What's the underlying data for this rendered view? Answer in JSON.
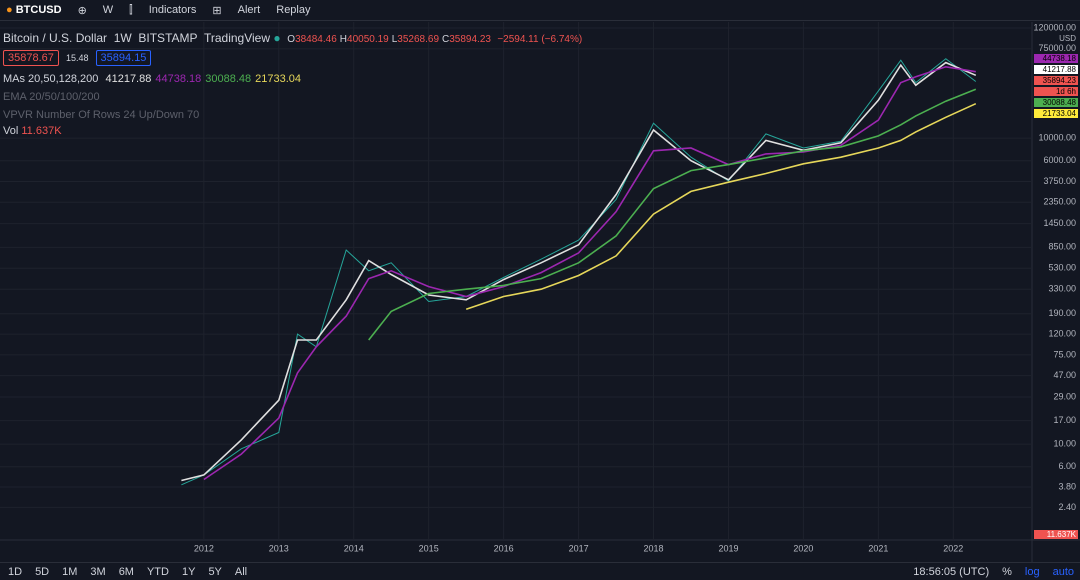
{
  "toolbar": {
    "symbol": "BTCUSD",
    "interval": "W",
    "indicators": "Indicators",
    "alert": "Alert",
    "replay": "Replay"
  },
  "legend": {
    "title": "Bitcoin / U.S. Dollar",
    "interval": "1W",
    "exchange": "BITSTAMP",
    "source": "TradingView",
    "ohlc": [
      {
        "k": "O",
        "v": "38484.46"
      },
      {
        "k": "H",
        "v": "40050.19"
      },
      {
        "k": "L",
        "v": "35268.69"
      },
      {
        "k": "C",
        "v": "35894.23"
      }
    ],
    "change": "−2594.11 (−6.74%)",
    "bid": "35878.67",
    "spread": "15.48",
    "ask": "35894.15",
    "mas_label": "MAs 20,50,128,200",
    "ma_values": [
      "41217.88",
      "44738.18",
      "30088.48",
      "21733.04"
    ],
    "ema": "EMA 20/50/100/200",
    "vpvr": "VPVR Number Of Rows 24 Up/Down 70",
    "vol_label": "Vol",
    "vol_value": "11.637K"
  },
  "axis_labels": {
    "currency": "USD",
    "boxes": [
      {
        "label": "44738.18",
        "color": "#9c27b0"
      },
      {
        "label": "41217.88",
        "color": "#ffffff"
      },
      {
        "label": "35894.23",
        "color": "#ef5350"
      },
      {
        "label": "1d 6h",
        "color": "#ef5350"
      },
      {
        "label": "30088.48",
        "color": "#4caf50"
      },
      {
        "label": "21733.04",
        "color": "#ffeb3b"
      }
    ],
    "volume": "11.637K"
  },
  "chart_data": {
    "type": "line",
    "log_scale": true,
    "grid": true,
    "x": [
      2011.7,
      2012,
      2012.5,
      2013,
      2013.25,
      2013.5,
      2013.9,
      2014.2,
      2014.5,
      2015,
      2015.5,
      2016,
      2016.5,
      2017,
      2017.5,
      2018,
      2018.5,
      2019,
      2019.5,
      2020,
      2020.5,
      2021,
      2021.3,
      2021.5,
      2021.9,
      2022.3
    ],
    "series": [
      {
        "name": "Price",
        "color": "#26a69a",
        "values": [
          4,
          5,
          9,
          13,
          120,
          90,
          800,
          500,
          600,
          250,
          280,
          430,
          650,
          1000,
          2500,
          14000,
          6500,
          3800,
          11000,
          8000,
          9300,
          29000,
          58000,
          35000,
          60000,
          35894
        ]
      },
      {
        "name": "MA 20",
        "color": "#e0e0e0",
        "values": [
          4.4,
          5,
          11,
          27,
          105,
          105,
          260,
          630,
          460,
          290,
          260,
          410,
          600,
          900,
          2800,
          12000,
          6000,
          3900,
          9500,
          7600,
          9000,
          23500,
          52000,
          33000,
          55000,
          41218
        ]
      },
      {
        "name": "MA 50",
        "color": "#9c27b0",
        "values": [
          null,
          4.5,
          8,
          18,
          50,
          90,
          180,
          420,
          500,
          350,
          280,
          350,
          480,
          750,
          1900,
          7500,
          8000,
          5500,
          7000,
          7300,
          8500,
          15000,
          35000,
          40000,
          50000,
          44738
        ]
      },
      {
        "name": "MA 128",
        "color": "#4caf50",
        "values": [
          null,
          null,
          null,
          null,
          null,
          null,
          null,
          105,
          200,
          300,
          330,
          360,
          420,
          600,
          1100,
          3200,
          4800,
          5500,
          6400,
          7500,
          8200,
          10500,
          13500,
          16500,
          23000,
          30088
        ]
      },
      {
        "name": "MA 200",
        "color": "#e6d75a",
        "values": [
          null,
          null,
          null,
          null,
          null,
          null,
          null,
          null,
          null,
          null,
          210,
          280,
          330,
          450,
          700,
          1800,
          3000,
          3700,
          4500,
          5600,
          6500,
          8000,
          9500,
          11500,
          16000,
          21733
        ]
      }
    ],
    "xlim": [
      2009.28,
      2023.05
    ],
    "xticks": [
      2012,
      2013,
      2014,
      2015,
      2016,
      2017,
      2018,
      2019,
      2020,
      2021,
      2022
    ],
    "ylim": [
      1.15,
      120000
    ],
    "yticks": [
      {
        "value": 120000,
        "label": "120000.00"
      },
      {
        "value": 75000,
        "label": "75000.00"
      },
      {
        "value": 10000,
        "label": "10000.00"
      },
      {
        "value": 6000,
        "label": "6000.00"
      },
      {
        "value": 3750,
        "label": "3750.00"
      },
      {
        "value": 2350,
        "label": "2350.00"
      },
      {
        "value": 1450,
        "label": "1450.00"
      },
      {
        "value": 850,
        "label": "850.00"
      },
      {
        "value": 530,
        "label": "530.00"
      },
      {
        "value": 330,
        "label": "330.00"
      },
      {
        "value": 190,
        "label": "190.00"
      },
      {
        "value": 120,
        "label": "120.00"
      },
      {
        "value": 75,
        "label": "75.00"
      },
      {
        "value": 47,
        "label": "47.00"
      },
      {
        "value": 29,
        "label": "29.00"
      },
      {
        "value": 17,
        "label": "17.00"
      },
      {
        "value": 10,
        "label": "10.00"
      },
      {
        "value": 6,
        "label": "6.00"
      },
      {
        "value": 3.8,
        "label": "3.80"
      },
      {
        "value": 2.4,
        "label": "2.40"
      }
    ]
  },
  "bottom": {
    "ranges": [
      "1D",
      "5D",
      "1M",
      "3M",
      "6M",
      "YTD",
      "1Y",
      "5Y",
      "All"
    ],
    "time": "18:56:05 (UTC)",
    "percent": "%",
    "log": "log",
    "auto": "auto"
  }
}
